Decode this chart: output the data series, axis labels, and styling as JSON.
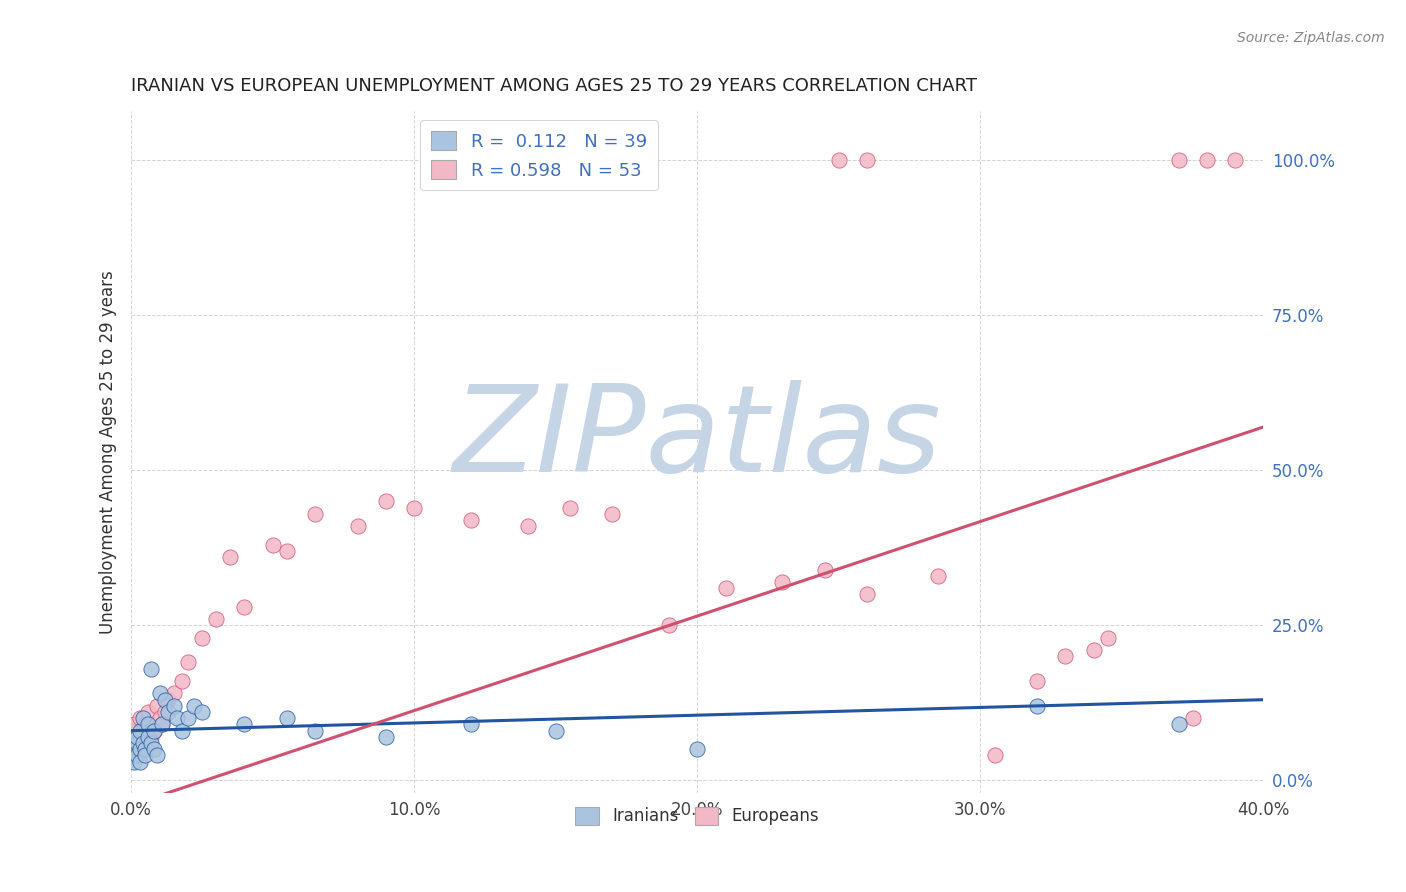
{
  "title": "IRANIAN VS EUROPEAN UNEMPLOYMENT AMONG AGES 25 TO 29 YEARS CORRELATION CHART",
  "source": "Source: ZipAtlas.com",
  "ylabel": "Unemployment Among Ages 25 to 29 years",
  "xlim": [
    0.0,
    0.4
  ],
  "ylim": [
    -0.02,
    1.08
  ],
  "xticks": [
    0.0,
    0.1,
    0.2,
    0.3,
    0.4
  ],
  "yticks": [
    0.0,
    0.25,
    0.5,
    0.75,
    1.0
  ],
  "xticklabels": [
    "0.0%",
    "10.0%",
    "20.0%",
    "30.0%",
    "40.0%"
  ],
  "yticklabels": [
    "0.0%",
    "25.0%",
    "50.0%",
    "75.0%",
    "100.0%"
  ],
  "iranian_color": "#aac4df",
  "european_color": "#f2b8c6",
  "iranian_line_color": "#2255a0",
  "european_line_color": "#d05070",
  "watermark": "ZIPatlas",
  "watermark_color": "#c5d5e5",
  "legend_R_iranian": "0.112",
  "legend_N_iranian": "39",
  "legend_R_european": "0.598",
  "legend_N_european": "53",
  "background_color": "#ffffff",
  "grid_color": "#c8c8c8",
  "iranians_x": [
    0.0,
    0.001,
    0.001,
    0.002,
    0.002,
    0.002,
    0.003,
    0.003,
    0.003,
    0.004,
    0.004,
    0.005,
    0.005,
    0.006,
    0.006,
    0.007,
    0.007,
    0.008,
    0.008,
    0.009,
    0.01,
    0.011,
    0.012,
    0.013,
    0.015,
    0.016,
    0.018,
    0.02,
    0.022,
    0.025,
    0.04,
    0.055,
    0.065,
    0.09,
    0.12,
    0.15,
    0.2,
    0.32,
    0.37
  ],
  "iranians_y": [
    0.04,
    0.05,
    0.03,
    0.06,
    0.04,
    0.07,
    0.05,
    0.08,
    0.03,
    0.06,
    0.1,
    0.05,
    0.04,
    0.07,
    0.09,
    0.06,
    0.18,
    0.08,
    0.05,
    0.04,
    0.14,
    0.09,
    0.13,
    0.11,
    0.12,
    0.1,
    0.08,
    0.1,
    0.12,
    0.11,
    0.09,
    0.1,
    0.08,
    0.07,
    0.09,
    0.08,
    0.05,
    0.12,
    0.09
  ],
  "europeans_x": [
    0.0,
    0.001,
    0.001,
    0.002,
    0.002,
    0.003,
    0.003,
    0.004,
    0.004,
    0.005,
    0.005,
    0.006,
    0.007,
    0.008,
    0.009,
    0.01,
    0.011,
    0.012,
    0.013,
    0.015,
    0.018,
    0.02,
    0.025,
    0.03,
    0.035,
    0.04,
    0.05,
    0.055,
    0.065,
    0.08,
    0.09,
    0.1,
    0.12,
    0.14,
    0.155,
    0.17,
    0.19,
    0.21,
    0.23,
    0.245,
    0.26,
    0.285,
    0.305,
    0.32,
    0.34,
    0.345,
    0.26,
    0.33,
    0.375,
    0.38,
    0.25,
    0.37,
    0.39
  ],
  "europeans_y": [
    0.08,
    0.05,
    0.09,
    0.04,
    0.06,
    0.07,
    0.1,
    0.05,
    0.08,
    0.06,
    0.09,
    0.11,
    0.07,
    0.08,
    0.12,
    0.1,
    0.09,
    0.11,
    0.13,
    0.14,
    0.16,
    0.19,
    0.23,
    0.26,
    0.36,
    0.28,
    0.38,
    0.37,
    0.43,
    0.41,
    0.45,
    0.44,
    0.42,
    0.41,
    0.44,
    0.43,
    0.25,
    0.31,
    0.32,
    0.34,
    0.3,
    0.33,
    0.04,
    0.16,
    0.21,
    0.23,
    1.0,
    0.2,
    0.1,
    1.0,
    1.0,
    1.0,
    1.0
  ],
  "iranian_trend": [
    0.08,
    0.13
  ],
  "european_trend": [
    -0.04,
    0.57
  ]
}
